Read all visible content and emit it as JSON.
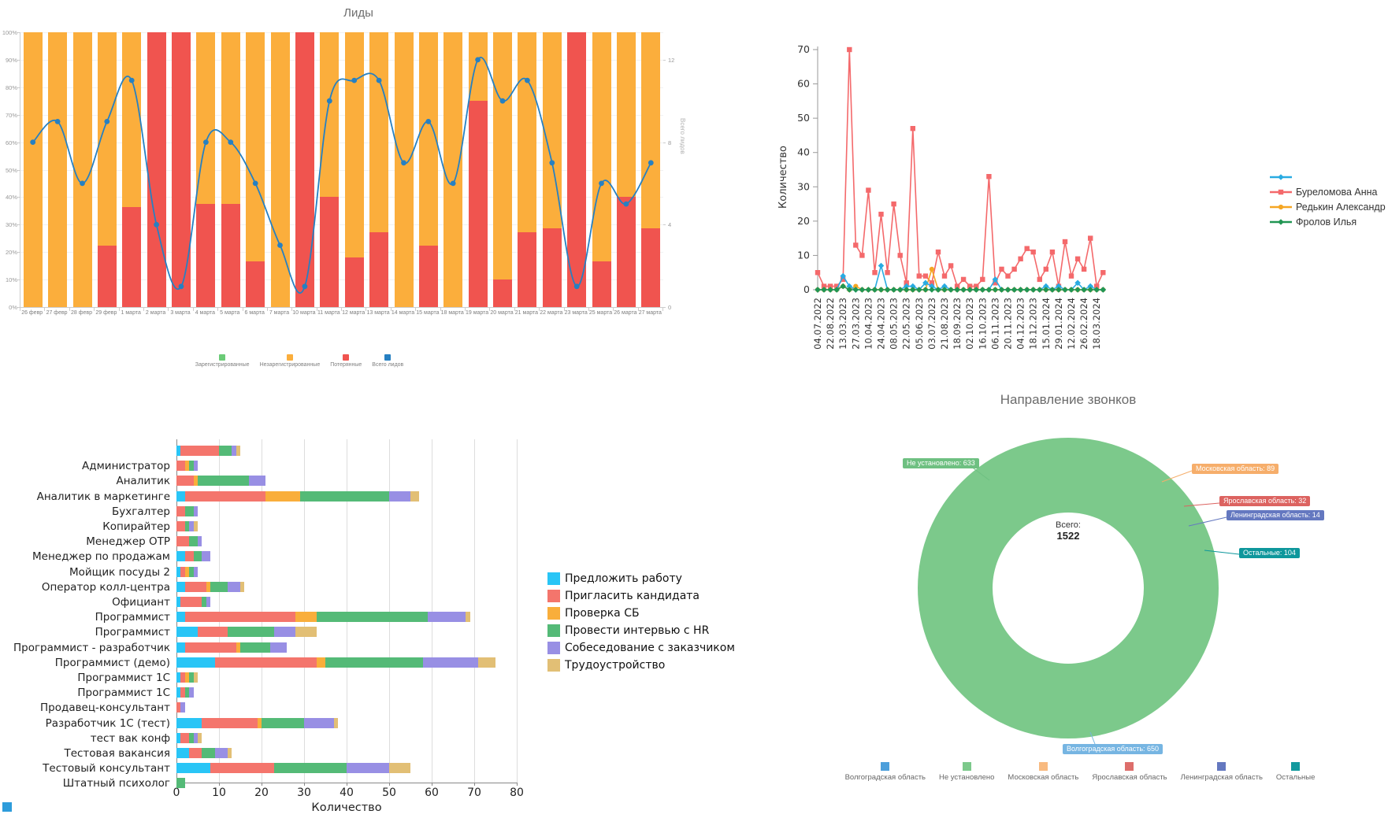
{
  "page": {
    "corner_accent_color": "#2D9CDB"
  },
  "chart_data": [
    {
      "id": "leads",
      "type": "stacked-bar-line",
      "title": "Лиды",
      "y_left_ticks": [
        "0%",
        "10%",
        "20%",
        "30%",
        "40%",
        "50%",
        "60%",
        "70%",
        "80%",
        "90%",
        "100%"
      ],
      "y_right_label": "Всего лидов",
      "y_right_ticks": [
        {
          "value": "0",
          "pct": 0
        },
        {
          "value": "4",
          "pct": 30
        },
        {
          "value": "8",
          "pct": 60
        },
        {
          "value": "12",
          "pct": 90
        }
      ],
      "y_right_max": 13.333,
      "legend": [
        {
          "label": "Зарегистрированные",
          "color": "#6BCB77"
        },
        {
          "label": "Незарегистрированные",
          "color": "#FBAE3C"
        },
        {
          "label": "Потерянные",
          "color": "#F0544F"
        },
        {
          "label": "Всего лидов",
          "color": "#2680C2"
        }
      ],
      "colors": {
        "unregistered": "#FBAE3C",
        "lost": "#F0544F",
        "line": "#2680C2"
      },
      "categories": [
        "26 февр",
        "27 февр",
        "28 февр",
        "29 февр",
        "1 марта",
        "2 марта",
        "3 марта",
        "4 марта",
        "5 марта",
        "6 марта",
        "7 марта",
        "10 марта",
        "11 марта",
        "12 марта",
        "13 марта",
        "14 марта",
        "15 марта",
        "18 марта",
        "19 марта",
        "20 марта",
        "21 марта",
        "22 марта",
        "23 марта",
        "25 марта",
        "26 марта",
        "27 марта"
      ],
      "registered": [
        0,
        0,
        0,
        0,
        0,
        0,
        0,
        0,
        0,
        0,
        0,
        0,
        0,
        0,
        0,
        0,
        0,
        0,
        0,
        0,
        0,
        0,
        0,
        0,
        0,
        0
      ],
      "lost": [
        0,
        0,
        0,
        2,
        4,
        4,
        1,
        3,
        3,
        1,
        0,
        1,
        4,
        2,
        3,
        0,
        2,
        0,
        9,
        1,
        3,
        2,
        1,
        1,
        2,
        2
      ],
      "total": [
        8,
        9,
        6,
        9,
        11,
        4,
        1,
        8,
        8,
        6,
        3,
        1,
        10,
        11,
        11,
        7,
        9,
        6,
        12,
        10,
        11,
        7,
        1,
        6,
        5,
        7
      ]
    },
    {
      "id": "managers",
      "type": "line",
      "ylabel": "Количество",
      "y_ticks": [
        0,
        10,
        20,
        30,
        40,
        50,
        60,
        70
      ],
      "ymax": 70,
      "x_labels": [
        "04.07.2022",
        "22.08.2022",
        "13.03.2023",
        "27.03.2023",
        "10.04.2023",
        "24.04.2023",
        "08.05.2023",
        "22.05.2023",
        "05.06.2023",
        "03.07.2023",
        "21.08.2023",
        "18.09.2023",
        "02.10.2023",
        "16.10.2023",
        "06.11.2023",
        "20.11.2023",
        "04.12.2023",
        "18.12.2023",
        "15.01.2024",
        "29.01.2024",
        "12.02.2024",
        "26.02.2024",
        "18.03.2024"
      ],
      "series": [
        {
          "name": "Буреломова Анна",
          "color": "#F4696B",
          "marker": "square",
          "values": [
            5,
            1,
            1,
            1,
            3,
            70,
            13,
            10,
            29,
            5,
            22,
            5,
            25,
            10,
            2,
            47,
            4,
            4,
            2,
            11,
            4,
            7,
            1,
            3,
            1,
            1,
            3,
            33,
            2,
            6,
            4,
            6,
            9,
            12,
            11,
            3,
            6,
            11,
            1,
            14,
            4,
            9,
            6,
            15,
            1,
            5
          ]
        },
        {
          "name": "Редькин Александр",
          "color": "#F5A623",
          "marker": "circle",
          "values": [
            0,
            0,
            0,
            0,
            1,
            0,
            1,
            0,
            0,
            0,
            0,
            0,
            0,
            0,
            0,
            0,
            0,
            0,
            6,
            0,
            0,
            0,
            0,
            0,
            0,
            0,
            0,
            0,
            0,
            0,
            0,
            0,
            0,
            0,
            0,
            0,
            0,
            0,
            0,
            0,
            0,
            0,
            0,
            0,
            0,
            0
          ]
        },
        {
          "name": "",
          "color": "#29ABE2",
          "marker": "diamond",
          "values": [
            0,
            0,
            0,
            0,
            4,
            1,
            0,
            0,
            0,
            0,
            7,
            0,
            0,
            0,
            1,
            1,
            0,
            2,
            1,
            0,
            1,
            0,
            0,
            0,
            0,
            0,
            0,
            0,
            3,
            0,
            0,
            0,
            0,
            0,
            0,
            0,
            1,
            0,
            1,
            0,
            0,
            2,
            0,
            1,
            0,
            0
          ]
        },
        {
          "name": "Фролов Илья",
          "color": "#219653",
          "marker": "diamond",
          "values": [
            0,
            0,
            0,
            0,
            1,
            0,
            0,
            0,
            0,
            0,
            0,
            0,
            0,
            0,
            0,
            0,
            0,
            0,
            0,
            0,
            0,
            0,
            0,
            0,
            0,
            0,
            0,
            0,
            0,
            0,
            0,
            0,
            0,
            0,
            0,
            0,
            0,
            0,
            0,
            0,
            0,
            0,
            0,
            0,
            0,
            0
          ]
        }
      ],
      "legend_order": [
        "",
        "Буреломова Анна",
        "Редькин Александр",
        "Фролов Илья"
      ]
    },
    {
      "id": "vacancies",
      "type": "stacked-bar-horizontal",
      "xlabel": "Количество",
      "x_ticks": [
        0,
        10,
        20,
        30,
        40,
        50,
        60,
        70,
        80
      ],
      "xmax": 80,
      "stages": [
        {
          "label": "Предложить работу",
          "color": "#29C5F6"
        },
        {
          "label": "Пригласить кандидата",
          "color": "#F4756C"
        },
        {
          "label": "Проверка СБ",
          "color": "#F9AE3B"
        },
        {
          "label": "Провести интервью с HR",
          "color": "#54BA77"
        },
        {
          "label": "Собеседование с заказчиком",
          "color": "#988FE4"
        },
        {
          "label": "Трудоустройство",
          "color": "#E2BF75"
        }
      ],
      "rows": [
        {
          "label": "",
          "values": [
            1,
            9,
            0,
            3,
            1,
            1
          ]
        },
        {
          "label": "Администратор",
          "values": [
            0,
            2,
            1,
            1,
            1,
            0
          ]
        },
        {
          "label": "Аналитик",
          "values": [
            0,
            4,
            1,
            12,
            4,
            0
          ]
        },
        {
          "label": "Аналитик в маркетинге",
          "values": [
            2,
            19,
            8,
            21,
            5,
            2
          ]
        },
        {
          "label": "Бухгалтер",
          "values": [
            0,
            2,
            0,
            2,
            1,
            0
          ]
        },
        {
          "label": "Копирайтер",
          "values": [
            0,
            2,
            0,
            1,
            1,
            1
          ]
        },
        {
          "label": "Менеджер ОТР",
          "values": [
            0,
            3,
            0,
            2,
            1,
            0
          ]
        },
        {
          "label": "Менеджер по продажам",
          "values": [
            2,
            2,
            0,
            2,
            2,
            0
          ]
        },
        {
          "label": "Мойщик посуды 2",
          "values": [
            1,
            1,
            1,
            1,
            1,
            0
          ]
        },
        {
          "label": "Оператор колл-центра",
          "values": [
            2,
            5,
            1,
            4,
            3,
            1
          ]
        },
        {
          "label": "Официант",
          "values": [
            1,
            5,
            0,
            1,
            1,
            0
          ]
        },
        {
          "label": "Программист",
          "values": [
            2,
            26,
            5,
            26,
            9,
            1
          ]
        },
        {
          "label": "Программист",
          "values": [
            5,
            7,
            0,
            11,
            5,
            5
          ]
        },
        {
          "label": "Программист - разработчик",
          "values": [
            2,
            12,
            1,
            7,
            4,
            0
          ]
        },
        {
          "label": "Программист (демо)",
          "values": [
            9,
            24,
            2,
            23,
            13,
            4
          ]
        },
        {
          "label": "Программист 1С",
          "values": [
            1,
            1,
            1,
            1,
            0,
            1
          ]
        },
        {
          "label": "Программист 1С",
          "values": [
            1,
            1,
            0,
            1,
            1,
            0
          ]
        },
        {
          "label": "Продавец-консультант",
          "values": [
            0,
            1,
            0,
            0,
            1,
            0
          ]
        },
        {
          "label": "Разработчик 1С (тест)",
          "values": [
            6,
            13,
            1,
            10,
            7,
            1
          ]
        },
        {
          "label": "тест вак конф",
          "values": [
            1,
            2,
            0,
            1,
            1,
            1
          ]
        },
        {
          "label": "Тестовая вакансия",
          "values": [
            3,
            3,
            0,
            3,
            3,
            1
          ]
        },
        {
          "label": "Тестовый консультант",
          "values": [
            8,
            15,
            0,
            17,
            10,
            5
          ]
        },
        {
          "label": "Штатный психолог",
          "values": [
            0,
            0,
            0,
            2,
            0,
            0
          ]
        }
      ]
    },
    {
      "id": "calls",
      "type": "donut",
      "title": "Направление звонков",
      "center_label": "Всего:",
      "center_value": "1522",
      "total": 1522,
      "slices": [
        {
          "label": "Не установлено",
          "value": 633,
          "color": "#7CC98B",
          "callout": "Не установлено: 633",
          "callout_bg": "#6EC081"
        },
        {
          "label": "Московская область",
          "value": 89,
          "color": "#F8BA80",
          "callout": "Московская область: 89",
          "callout_bg": "#F6AE6B"
        },
        {
          "label": "Ярославская область",
          "value": 32,
          "color": "#DD6E6B",
          "callout": "Ярославская область: 32",
          "callout_bg": "#DC6360"
        },
        {
          "label": "Ленинградская область",
          "value": 14,
          "color": "#7080C6",
          "callout": "Ленинградская область: 14",
          "callout_bg": "#6478C0"
        },
        {
          "label": "Остальные",
          "value": 104,
          "color": "#12999E",
          "callout": "Остальные: 104",
          "callout_bg": "#0E979C"
        },
        {
          "label": "Волгоградская область",
          "value": 650,
          "color": "#4D9FDB",
          "callout": "Волгоградская область: 650",
          "callout_bg": "#76B5E2"
        }
      ],
      "legend": [
        {
          "label": "Волгоградская область",
          "color": "#4D9FDB"
        },
        {
          "label": "Не установлено",
          "color": "#7CC98B"
        },
        {
          "label": "Московская область",
          "color": "#F8BA80"
        },
        {
          "label": "Ярославская область",
          "color": "#DD6E6B"
        },
        {
          "label": "Ленинградская область",
          "color": "#6478C0"
        },
        {
          "label": "Остальные",
          "color": "#12999E"
        }
      ]
    }
  ]
}
